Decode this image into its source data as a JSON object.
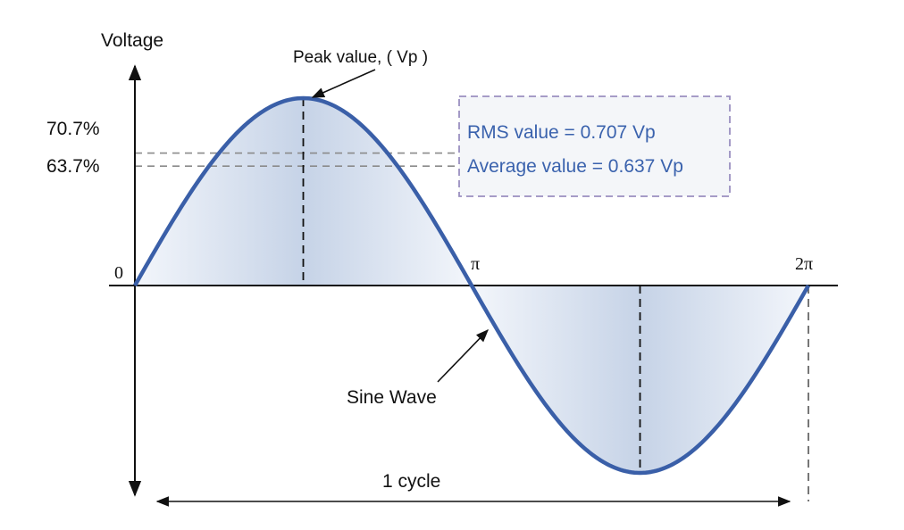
{
  "colors": {
    "wave": "#3a5fa8",
    "fill_edge": "#c9d5e8",
    "fill_center": "#eef2f8",
    "axis": "#111111",
    "guide": "#8a8a8a",
    "box_border": "#9a8fc0",
    "box_fill": "#f4f6f9",
    "box_text": "#3a62ad"
  },
  "labels": {
    "y_axis": "Voltage",
    "peak": "Peak value, ( Vp )",
    "pct_rms": "70.7%",
    "pct_avg": "63.7%",
    "origin": "0",
    "pi": "π",
    "two_pi": "2π",
    "sine_wave": "Sine Wave",
    "cycle": "1 cycle"
  },
  "info_box": {
    "rms": "RMS value = 0.707 Vp",
    "average": "Average value = 0.637 Vp"
  },
  "wave_data": {
    "function": "sine",
    "amplitude": 1,
    "rms_fraction": 0.707,
    "average_fraction": 0.637,
    "phase_range": [
      0,
      6.2832
    ]
  }
}
